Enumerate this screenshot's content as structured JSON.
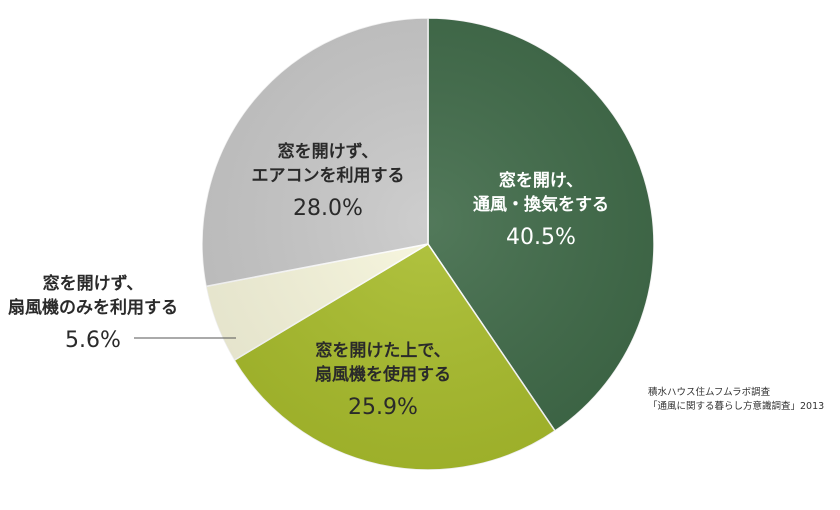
{
  "chart_data": {
    "type": "pie",
    "start": "top",
    "direction": "clockwise",
    "slices": [
      {
        "label_lines": [
          "窓を開け、",
          "通風・換気をする"
        ],
        "percent_label": "40.5%",
        "value": 40.5,
        "color": "#3f6a48",
        "text_color": "#ffffff"
      },
      {
        "label_lines": [
          "窓を開けた上で、",
          "扇風機を使用する"
        ],
        "percent_label": "25.9%",
        "value": 25.9,
        "color": "#a9bd2c",
        "text_color": "#2a2a2a"
      },
      {
        "label_lines": [
          "窓を開けず、",
          "扇風機のみを利用する"
        ],
        "percent_label": "5.6%",
        "value": 5.6,
        "color": "#f7f6dc",
        "text_color": "#2a2a2a"
      },
      {
        "label_lines": [
          "窓を開けず、",
          "エアコンを利用する"
        ],
        "percent_label": "28.0%",
        "value": 28.0,
        "color": "#c8c8c8",
        "text_color": "#2a2a2a"
      }
    ]
  },
  "source": {
    "line1": "積水ハウス住ムフムラボ調査",
    "line2": "「通風に関する暮らし方意識調査」2013"
  }
}
